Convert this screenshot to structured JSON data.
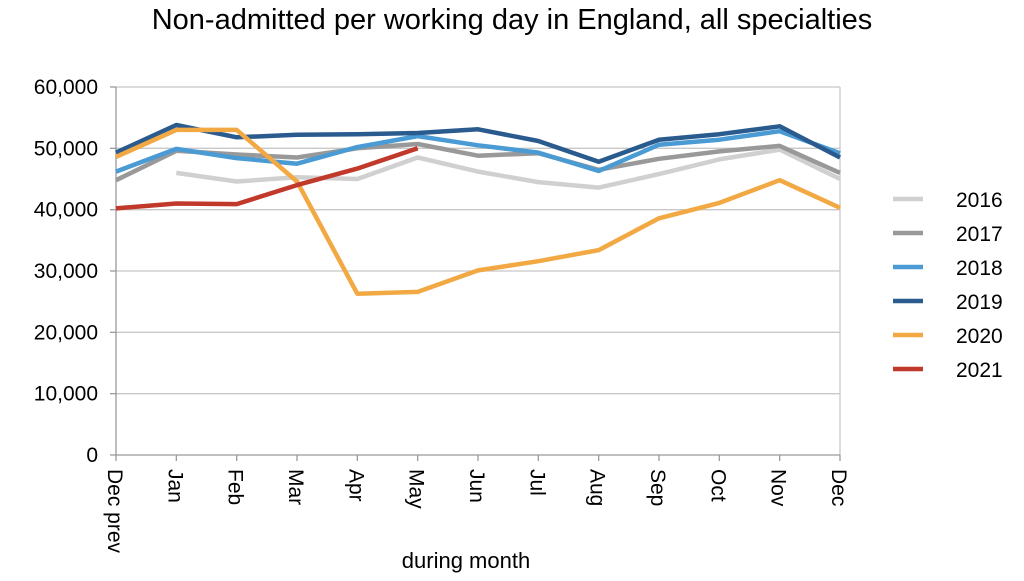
{
  "chart_data": {
    "type": "line",
    "title": "Non-admitted per working day in England, all specialties",
    "xlabel": "during  month",
    "ylabel": "",
    "categories": [
      "Dec prev",
      "Jan",
      "Feb",
      "Mar",
      "Apr",
      "May",
      "Jun",
      "Jul",
      "Aug",
      "Sep",
      "Oct",
      "Nov",
      "Dec"
    ],
    "ylim": [
      0,
      60000
    ],
    "yticks": [
      0,
      10000,
      20000,
      30000,
      40000,
      50000,
      60000
    ],
    "ytick_labels": [
      "0",
      "10,000",
      "20,000",
      "30,000",
      "40,000",
      "50,000",
      "60,000"
    ],
    "grid": "horizontal",
    "legend_position": "right",
    "series": [
      {
        "name": "2016",
        "color": "#d0d0d0",
        "values": [
          null,
          46000,
          44600,
          45300,
          45000,
          48500,
          46200,
          44500,
          43600,
          45800,
          48200,
          49800,
          45000
        ]
      },
      {
        "name": "2017",
        "color": "#999999",
        "values": [
          44800,
          49600,
          49000,
          48500,
          50000,
          50700,
          48800,
          49200,
          46500,
          48300,
          49500,
          50400,
          46000
        ]
      },
      {
        "name": "2018",
        "color": "#4a9ad4",
        "values": [
          46200,
          49900,
          48400,
          47500,
          50200,
          52000,
          50500,
          49300,
          46300,
          50600,
          51400,
          52800,
          49200
        ]
      },
      {
        "name": "2019",
        "color": "#2a5b8e",
        "values": [
          49300,
          53800,
          51800,
          52200,
          52300,
          52500,
          53100,
          51200,
          47800,
          51400,
          52300,
          53600,
          48500
        ]
      },
      {
        "name": "2020",
        "color": "#f2a944",
        "values": [
          48600,
          53000,
          53000,
          44600,
          26300,
          26600,
          30100,
          31600,
          33400,
          38600,
          41100,
          44800,
          40300
        ]
      },
      {
        "name": "2021",
        "color": "#c0392b",
        "values": [
          40200,
          41000,
          40900,
          44000,
          46700,
          50000,
          null,
          null,
          null,
          null,
          null,
          null,
          null
        ]
      }
    ]
  }
}
